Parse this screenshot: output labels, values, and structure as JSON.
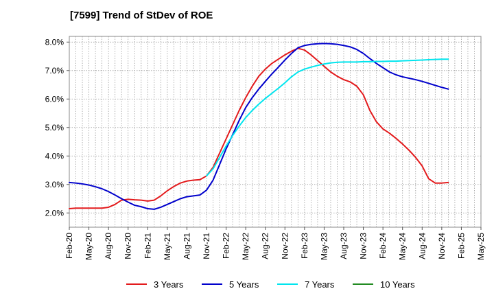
{
  "chart_data": {
    "type": "line",
    "title": "[7599]  Trend of StDev of ROE",
    "xlabel": "",
    "ylabel": "",
    "x_tick_labels": [
      "Feb-20",
      "May-20",
      "Aug-20",
      "Nov-20",
      "Feb-21",
      "May-21",
      "Aug-21",
      "Nov-21",
      "Feb-22",
      "May-22",
      "Aug-22",
      "Nov-22",
      "Feb-23",
      "May-23",
      "Aug-23",
      "Nov-23",
      "Feb-24",
      "May-24",
      "Aug-24",
      "Nov-24",
      "Feb-25",
      "May-25"
    ],
    "y_tick_labels": [
      "2.0%",
      "3.0%",
      "4.0%",
      "5.0%",
      "6.0%",
      "7.0%",
      "8.0%"
    ],
    "y_ticks": [
      2.0,
      3.0,
      4.0,
      5.0,
      6.0,
      7.0,
      8.0
    ],
    "ylim": [
      1.5,
      8.2
    ],
    "grid": true,
    "legend_position": "bottom",
    "series": [
      {
        "name": "3 Years",
        "color": "#e31a1c",
        "points": [
          [
            0,
            2.15
          ],
          [
            1,
            2.17
          ],
          [
            2,
            2.17
          ],
          [
            3,
            2.17
          ],
          [
            4,
            2.17
          ],
          [
            5,
            2.17
          ],
          [
            6,
            2.2
          ],
          [
            7,
            2.3
          ],
          [
            8,
            2.45
          ],
          [
            9,
            2.48
          ],
          [
            10,
            2.46
          ],
          [
            11,
            2.45
          ],
          [
            12,
            2.42
          ],
          [
            13,
            2.45
          ],
          [
            14,
            2.6
          ],
          [
            15,
            2.78
          ],
          [
            16,
            2.93
          ],
          [
            17,
            3.05
          ],
          [
            18,
            3.12
          ],
          [
            19,
            3.15
          ],
          [
            20,
            3.17
          ],
          [
            21,
            3.3
          ],
          [
            22,
            3.6
          ],
          [
            23,
            4.1
          ],
          [
            24,
            4.6
          ],
          [
            25,
            5.1
          ],
          [
            26,
            5.6
          ],
          [
            27,
            6.05
          ],
          [
            28,
            6.45
          ],
          [
            29,
            6.8
          ],
          [
            30,
            7.05
          ],
          [
            31,
            7.25
          ],
          [
            32,
            7.4
          ],
          [
            33,
            7.55
          ],
          [
            34,
            7.68
          ],
          [
            35,
            7.78
          ],
          [
            36,
            7.72
          ],
          [
            37,
            7.55
          ],
          [
            38,
            7.35
          ],
          [
            39,
            7.15
          ],
          [
            40,
            6.95
          ],
          [
            41,
            6.8
          ],
          [
            42,
            6.68
          ],
          [
            43,
            6.6
          ],
          [
            44,
            6.45
          ],
          [
            45,
            6.15
          ],
          [
            46,
            5.6
          ],
          [
            47,
            5.2
          ],
          [
            48,
            4.95
          ],
          [
            49,
            4.8
          ],
          [
            50,
            4.62
          ],
          [
            51,
            4.42
          ],
          [
            52,
            4.2
          ],
          [
            53,
            3.95
          ],
          [
            54,
            3.65
          ],
          [
            55,
            3.2
          ],
          [
            56,
            3.05
          ],
          [
            57,
            3.05
          ],
          [
            58,
            3.07
          ]
        ]
      },
      {
        "name": "5 Years",
        "color": "#0000cc",
        "points": [
          [
            0,
            3.07
          ],
          [
            1,
            3.05
          ],
          [
            2,
            3.02
          ],
          [
            3,
            2.98
          ],
          [
            4,
            2.92
          ],
          [
            5,
            2.85
          ],
          [
            6,
            2.75
          ],
          [
            7,
            2.63
          ],
          [
            8,
            2.5
          ],
          [
            9,
            2.38
          ],
          [
            10,
            2.27
          ],
          [
            11,
            2.22
          ],
          [
            12,
            2.15
          ],
          [
            13,
            2.13
          ],
          [
            14,
            2.2
          ],
          [
            15,
            2.3
          ],
          [
            16,
            2.4
          ],
          [
            17,
            2.5
          ],
          [
            18,
            2.57
          ],
          [
            19,
            2.6
          ],
          [
            20,
            2.63
          ],
          [
            21,
            2.8
          ],
          [
            22,
            3.15
          ],
          [
            23,
            3.7
          ],
          [
            24,
            4.25
          ],
          [
            25,
            4.75
          ],
          [
            26,
            5.25
          ],
          [
            27,
            5.7
          ],
          [
            28,
            6.05
          ],
          [
            29,
            6.35
          ],
          [
            30,
            6.62
          ],
          [
            31,
            6.88
          ],
          [
            32,
            7.12
          ],
          [
            33,
            7.37
          ],
          [
            34,
            7.6
          ],
          [
            35,
            7.8
          ],
          [
            36,
            7.88
          ],
          [
            37,
            7.92
          ],
          [
            38,
            7.94
          ],
          [
            39,
            7.95
          ],
          [
            40,
            7.94
          ],
          [
            41,
            7.92
          ],
          [
            42,
            7.88
          ],
          [
            43,
            7.83
          ],
          [
            44,
            7.74
          ],
          [
            45,
            7.6
          ],
          [
            46,
            7.42
          ],
          [
            47,
            7.25
          ],
          [
            48,
            7.1
          ],
          [
            49,
            6.95
          ],
          [
            50,
            6.85
          ],
          [
            51,
            6.78
          ],
          [
            52,
            6.73
          ],
          [
            53,
            6.68
          ],
          [
            54,
            6.62
          ],
          [
            55,
            6.55
          ],
          [
            56,
            6.48
          ],
          [
            57,
            6.41
          ],
          [
            58,
            6.35
          ]
        ]
      },
      {
        "name": "7 Years",
        "color": "#00e5ee",
        "points": [
          [
            21,
            3.3
          ],
          [
            22,
            3.55
          ],
          [
            23,
            3.95
          ],
          [
            24,
            4.35
          ],
          [
            25,
            4.72
          ],
          [
            26,
            5.05
          ],
          [
            27,
            5.35
          ],
          [
            28,
            5.6
          ],
          [
            29,
            5.82
          ],
          [
            30,
            6.02
          ],
          [
            31,
            6.2
          ],
          [
            32,
            6.38
          ],
          [
            33,
            6.57
          ],
          [
            34,
            6.78
          ],
          [
            35,
            6.95
          ],
          [
            36,
            7.05
          ],
          [
            37,
            7.12
          ],
          [
            38,
            7.18
          ],
          [
            39,
            7.23
          ],
          [
            40,
            7.27
          ],
          [
            41,
            7.29
          ],
          [
            42,
            7.3
          ],
          [
            43,
            7.3
          ],
          [
            44,
            7.3
          ],
          [
            45,
            7.31
          ],
          [
            46,
            7.31
          ],
          [
            47,
            7.32
          ],
          [
            48,
            7.32
          ],
          [
            49,
            7.33
          ],
          [
            50,
            7.33
          ],
          [
            51,
            7.34
          ],
          [
            52,
            7.35
          ],
          [
            53,
            7.36
          ],
          [
            54,
            7.37
          ],
          [
            55,
            7.38
          ],
          [
            56,
            7.39
          ],
          [
            57,
            7.4
          ],
          [
            58,
            7.4
          ]
        ]
      },
      {
        "name": "10 Years",
        "color": "#228b22",
        "points": []
      }
    ]
  }
}
